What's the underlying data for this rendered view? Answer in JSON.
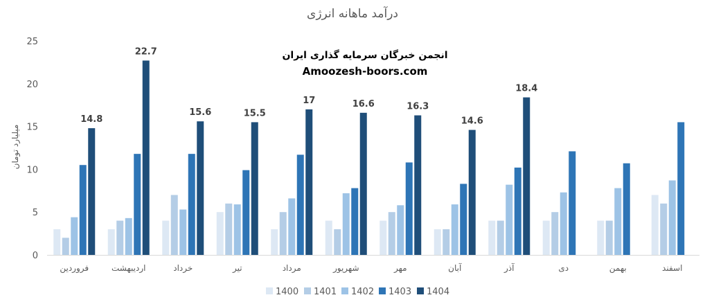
{
  "chart_data": {
    "type": "bar",
    "title": "درآمد ماهانه انرژی",
    "ylabel": "میلیارد تومان",
    "xlabel": "",
    "ylim": [
      0,
      25
    ],
    "yticks": [
      0,
      5,
      10,
      15,
      20,
      25
    ],
    "grid": false,
    "legend_position": "bottom",
    "categories": [
      "فروردین",
      "اردیبهشت",
      "خرداد",
      "تیر",
      "مرداد",
      "شهریور",
      "مهر",
      "آبان",
      "آذر",
      "دی",
      "بهمن",
      "اسفند"
    ],
    "series": [
      {
        "name": "1400",
        "color": "#dde8f4",
        "values": [
          3,
          3,
          4,
          5,
          3,
          4,
          4,
          3,
          4,
          4,
          4,
          7
        ]
      },
      {
        "name": "1401",
        "color": "#b4cde6",
        "values": [
          2,
          4,
          7,
          6,
          5,
          3,
          5,
          3,
          4,
          5,
          4,
          6
        ]
      },
      {
        "name": "1402",
        "color": "#9dc3e6",
        "values": [
          4.4,
          4.3,
          5.3,
          5.9,
          6.6,
          7.2,
          5.8,
          5.9,
          8.2,
          7.3,
          7.8,
          8.7
        ]
      },
      {
        "name": "1403",
        "color": "#2e75b6",
        "values": [
          10.5,
          11.8,
          11.8,
          9.9,
          11.7,
          7.8,
          10.8,
          8.3,
          10.2,
          12.1,
          10.7,
          15.5
        ]
      },
      {
        "name": "1404",
        "color": "#1f4e79",
        "values": [
          14.8,
          22.7,
          15.6,
          15.5,
          17,
          16.6,
          16.3,
          14.6,
          18.4,
          null,
          null,
          null
        ],
        "data_labels": [
          "14.8",
          "22.7",
          "15.6",
          "15.5",
          "17",
          "16.6",
          "16.3",
          "14.6",
          "18.4"
        ]
      }
    ],
    "annotations": [
      "انجمن خبرگان سرمایه گذاری ایران",
      "Amoozesh-boors.com"
    ]
  }
}
